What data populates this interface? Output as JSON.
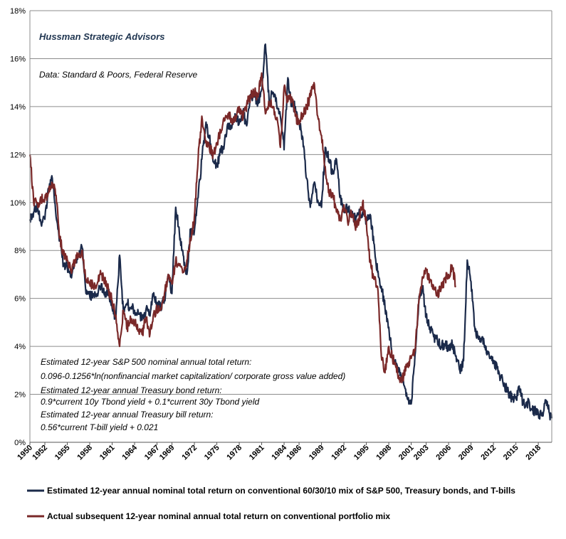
{
  "chart_data": {
    "type": "line",
    "xlim": [
      1950,
      2019.8
    ],
    "ylim": [
      0,
      18
    ],
    "y_ticks": [
      "0%",
      "2%",
      "4%",
      "6%",
      "8%",
      "10%",
      "12%",
      "14%",
      "16%",
      "18%"
    ],
    "x_ticks": [
      "1950",
      "1952",
      "1955",
      "1958",
      "1961",
      "1964",
      "1967",
      "1969",
      "1972",
      "1975",
      "1978",
      "1981",
      "1984",
      "1986",
      "1989",
      "1992",
      "1995",
      "1998",
      "2001",
      "2003",
      "2006",
      "2009",
      "2012",
      "2015",
      "2018"
    ],
    "grid": "horizontal",
    "source": "Hussman Strategic Advisors",
    "data_note": "Data: Standard & Poors, Federal Reserve",
    "annotations": [
      "Estimated 12-year S&P 500  nominal annual total return:",
      "0.096-0.1256*ln(nonfinancial market capitalization/ corporate gross value added)",
      "Estimated 12-year annual Treasury bond return:",
      "0.9*current 10y Tbond yield + 0.1*current 30y Tbond yield",
      "Estimated 12-year annual Treasury bill return:",
      "0.56*current T-bill yield + 0.021"
    ],
    "legend_position": "bottom",
    "series": [
      {
        "name": "Estimated 12-year annual nominal total return on conventional 60/30/10 mix of S&P 500, Treasury bonds, and T-bills",
        "color": "#1b2a4a",
        "x": [
          1950,
          1950.5,
          1951,
          1951.5,
          1952,
          1952.5,
          1953,
          1953.5,
          1954,
          1954.5,
          1955,
          1955.5,
          1956,
          1956.5,
          1957,
          1957.5,
          1958,
          1958.5,
          1959,
          1959.5,
          1960,
          1960.5,
          1961,
          1961.5,
          1962,
          1962.5,
          1963,
          1963.5,
          1964,
          1964.5,
          1965,
          1965.5,
          1966,
          1966.5,
          1967,
          1967.5,
          1968,
          1968.5,
          1969,
          1969.5,
          1970,
          1970.5,
          1971,
          1971.5,
          1972,
          1972.5,
          1973,
          1973.5,
          1974,
          1974.5,
          1975,
          1975.5,
          1976,
          1976.5,
          1977,
          1977.5,
          1978,
          1978.5,
          1979,
          1979.5,
          1980,
          1980.5,
          1981,
          1981.5,
          1982,
          1982.5,
          1983,
          1983.5,
          1984,
          1984.5,
          1985,
          1985.5,
          1986,
          1986.5,
          1987,
          1987.5,
          1988,
          1988.5,
          1989,
          1989.5,
          1990,
          1990.5,
          1991,
          1991.5,
          1992,
          1992.5,
          1993,
          1993.5,
          1994,
          1994.5,
          1995,
          1995.5,
          1996,
          1996.5,
          1997,
          1997.5,
          1998,
          1998.5,
          1999,
          1999.5,
          2000,
          2000.5,
          2001,
          2001.5,
          2002,
          2002.5,
          2003,
          2003.5,
          2004,
          2004.5,
          2005,
          2005.5,
          2006,
          2006.5,
          2007,
          2007.5,
          2008,
          2008.5,
          2009,
          2009.5,
          2010,
          2010.5,
          2011,
          2011.5,
          2012,
          2012.5,
          2013,
          2013.5,
          2014,
          2014.5,
          2015,
          2015.5,
          2016,
          2016.5,
          2017,
          2017.5,
          2018,
          2018.5,
          2019,
          2019.5,
          2019.8
        ],
        "y": [
          9.3,
          9.6,
          9.9,
          9.1,
          9.3,
          10.6,
          11,
          9.4,
          8.5,
          7.4,
          7.3,
          6.9,
          7.5,
          7.8,
          8.1,
          6.2,
          6.1,
          6.1,
          6.2,
          6.5,
          6.2,
          6.3,
          5.6,
          5.2,
          7.8,
          5.4,
          5.8,
          5.6,
          5.5,
          5.4,
          5.1,
          5.5,
          5.4,
          6.1,
          5.8,
          5.6,
          6,
          7,
          6.2,
          9.8,
          8.7,
          7.8,
          7,
          8.9,
          8.8,
          10.2,
          11.8,
          13.2,
          12.8,
          11.7,
          11.5,
          12.1,
          12.4,
          13.3,
          13.1,
          13.6,
          13.3,
          13.8,
          13.2,
          14.5,
          14.4,
          14.2,
          14.7,
          16.6,
          14.2,
          14.6,
          14.1,
          13.6,
          12.2,
          15.2,
          14,
          14,
          13.3,
          12.7,
          11,
          9.8,
          10.8,
          10.1,
          9.8,
          12.3,
          11.8,
          11.2,
          11.8,
          10.2,
          9.6,
          9.8,
          9.5,
          9.3,
          9.5,
          9.6,
          9.2,
          9.5,
          8.3,
          7.1,
          6.5,
          5.6,
          4.8,
          3.5,
          3.3,
          2.8,
          2.4,
          1.8,
          1.6,
          3.6,
          5.8,
          6.5,
          5.2,
          4.8,
          4.4,
          4.3,
          4,
          4.1,
          3.9,
          4.1,
          3.6,
          3,
          3.4,
          7.6,
          6.7,
          4.8,
          4.3,
          4.4,
          4,
          3.5,
          3.3,
          3.1,
          2.7,
          2.4,
          2.1,
          1.8,
          1.9,
          2.2,
          1.6,
          1.7,
          1.4,
          1.3,
          1.2,
          1.1,
          1.7,
          1.2,
          1
        ]
      },
      {
        "name": "Actual subsequent 12-year nominal annual total return on conventional portfolio mix",
        "color": "#7a2828",
        "x": [
          1950,
          1950.5,
          1951,
          1951.5,
          1952,
          1952.5,
          1953,
          1953.5,
          1954,
          1954.5,
          1955,
          1955.5,
          1956,
          1956.5,
          1957,
          1957.5,
          1958,
          1958.5,
          1959,
          1959.5,
          1960,
          1960.5,
          1961,
          1961.5,
          1962,
          1962.5,
          1963,
          1963.5,
          1964,
          1964.5,
          1965,
          1965.5,
          1966,
          1966.5,
          1967,
          1967.5,
          1968,
          1968.5,
          1969,
          1969.5,
          1970,
          1970.5,
          1971,
          1971.5,
          1972,
          1972.5,
          1973,
          1973.5,
          1974,
          1974.5,
          1975,
          1975.5,
          1976,
          1976.5,
          1977,
          1977.5,
          1978,
          1978.5,
          1979,
          1979.5,
          1980,
          1980.5,
          1981,
          1981.5,
          1982,
          1982.5,
          1983,
          1983.5,
          1984,
          1984.5,
          1985,
          1985.5,
          1986,
          1986.5,
          1987,
          1987.5,
          1988,
          1988.5,
          1989,
          1989.5,
          1990,
          1990.5,
          1991,
          1991.5,
          1992,
          1992.5,
          1993,
          1993.5,
          1994,
          1994.5,
          1995,
          1995.5,
          1996,
          1996.5,
          1997,
          1997.5,
          1998,
          1998.5,
          1999,
          1999.5,
          2000,
          2000.5,
          2001,
          2001.5,
          2002,
          2002.5,
          2003,
          2003.5,
          2004,
          2004.5,
          2005,
          2005.5,
          2006,
          2006.5,
          2007
        ],
        "y": [
          12,
          10,
          10,
          10.1,
          10.2,
          10.4,
          10.8,
          10.3,
          8.5,
          7.8,
          7.6,
          7.2,
          7.5,
          7.8,
          8,
          6.8,
          6.6,
          6.5,
          6.6,
          7,
          6.8,
          6.4,
          5.9,
          5.3,
          4,
          5.5,
          4.8,
          5.1,
          5,
          4.7,
          4.5,
          5.2,
          4.4,
          5.3,
          5.6,
          5.6,
          6.2,
          7,
          6.6,
          7.6,
          7.4,
          7.1,
          7.6,
          8.4,
          9.4,
          11.8,
          13.6,
          12.5,
          12.3,
          12,
          12.5,
          13,
          13.4,
          13.7,
          13.5,
          13.4,
          14,
          13.5,
          14.1,
          14.4,
          14.6,
          14.4,
          15.4,
          13.7,
          14.2,
          14,
          13.5,
          12.3,
          14.8,
          14.2,
          14.4,
          13.6,
          13.3,
          13.7,
          14,
          14.4,
          15,
          13.6,
          12.8,
          11.5,
          10.4,
          10.4,
          9.6,
          9.3,
          9.9,
          9.2,
          9.6,
          9,
          9.2,
          10,
          9.2,
          7.5,
          6.8,
          6.5,
          3.6,
          2.9,
          4,
          3.5,
          3.2,
          2.5,
          2.8,
          3.3,
          3.5,
          3.8,
          5.8,
          6.9,
          7.2,
          6.8,
          6.5,
          6.2,
          6.4,
          6.8,
          7,
          7.3,
          6.5
        ]
      }
    ]
  }
}
